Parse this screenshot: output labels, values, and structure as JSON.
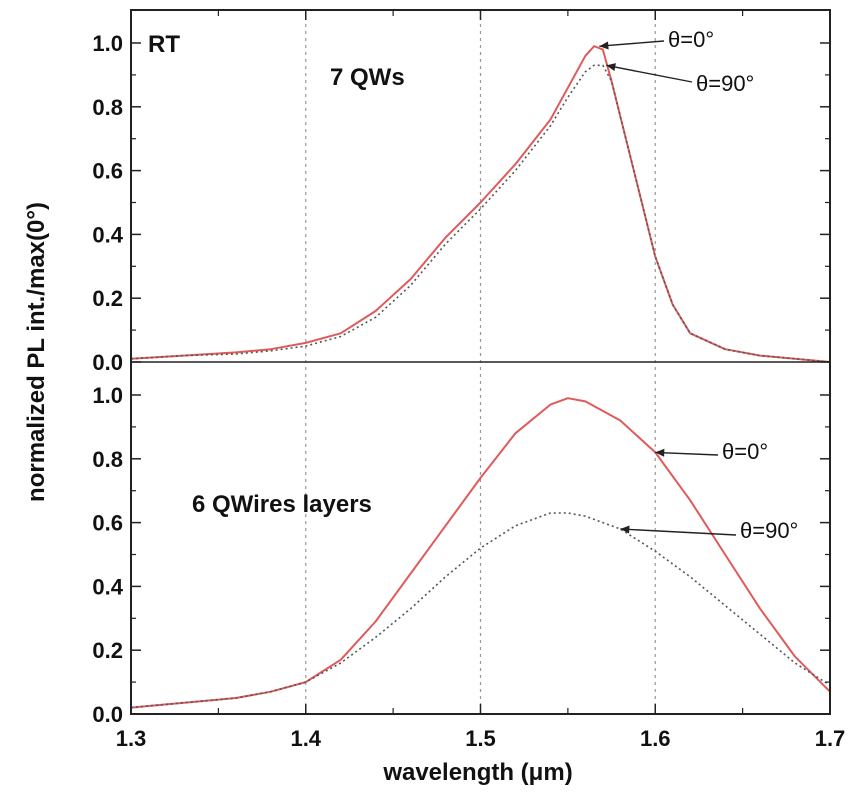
{
  "chart_data": [
    {
      "type": "line",
      "panel": "top",
      "xlim": [
        1.3,
        1.7
      ],
      "ylim": [
        0.0,
        1.1
      ],
      "ylabel": "normalized PL int./max(0°)",
      "y_ticks": [
        "0.0",
        "0.2",
        "0.4",
        "0.6",
        "0.8",
        "1.0"
      ],
      "annotations": {
        "rt": "RT",
        "sample": "7 QWs",
        "theta0": "θ=0°",
        "theta90": "θ=90°"
      },
      "series": [
        {
          "color": "#e05a5a",
          "dash": "solid",
          "x": [
            1.3,
            1.33,
            1.36,
            1.38,
            1.4,
            1.42,
            1.44,
            1.46,
            1.48,
            1.5,
            1.52,
            1.54,
            1.55,
            1.56,
            1.565,
            1.57,
            1.575,
            1.58,
            1.59,
            1.6,
            1.61,
            1.62,
            1.64,
            1.66,
            1.68,
            1.7
          ],
          "y": [
            0.01,
            0.02,
            0.03,
            0.04,
            0.06,
            0.09,
            0.16,
            0.26,
            0.39,
            0.5,
            0.62,
            0.76,
            0.86,
            0.96,
            0.99,
            0.98,
            0.88,
            0.77,
            0.55,
            0.33,
            0.18,
            0.09,
            0.04,
            0.02,
            0.01,
            0.0
          ]
        },
        {
          "color": "#555555",
          "dash": "dotted",
          "x": [
            1.3,
            1.33,
            1.36,
            1.38,
            1.4,
            1.42,
            1.44,
            1.46,
            1.48,
            1.5,
            1.52,
            1.54,
            1.55,
            1.56,
            1.565,
            1.57,
            1.575,
            1.58,
            1.59,
            1.6,
            1.61,
            1.62,
            1.64,
            1.66,
            1.68,
            1.7
          ],
          "y": [
            0.01,
            0.02,
            0.025,
            0.035,
            0.05,
            0.08,
            0.14,
            0.24,
            0.37,
            0.48,
            0.6,
            0.74,
            0.83,
            0.91,
            0.93,
            0.93,
            0.88,
            0.77,
            0.55,
            0.33,
            0.18,
            0.09,
            0.04,
            0.02,
            0.01,
            0.0
          ]
        }
      ]
    },
    {
      "type": "line",
      "panel": "bottom",
      "xlim": [
        1.3,
        1.7
      ],
      "ylim": [
        0.0,
        1.0
      ],
      "xlabel": "wavelength (μm)",
      "x_ticks": [
        "1.3",
        "1.4",
        "1.5",
        "1.6",
        "1.7"
      ],
      "y_ticks": [
        "0.0",
        "0.2",
        "0.4",
        "0.6",
        "0.8",
        "1.0"
      ],
      "annotations": {
        "sample": "6 QWires layers",
        "theta0": "θ=0°",
        "theta90": "θ=90°"
      },
      "series": [
        {
          "color": "#e05a5a",
          "dash": "solid",
          "x": [
            1.3,
            1.32,
            1.34,
            1.36,
            1.38,
            1.4,
            1.42,
            1.44,
            1.46,
            1.48,
            1.5,
            1.52,
            1.54,
            1.55,
            1.56,
            1.58,
            1.6,
            1.62,
            1.64,
            1.66,
            1.68,
            1.7
          ],
          "y": [
            0.02,
            0.03,
            0.04,
            0.05,
            0.07,
            0.1,
            0.17,
            0.29,
            0.44,
            0.59,
            0.74,
            0.88,
            0.97,
            0.99,
            0.98,
            0.92,
            0.82,
            0.67,
            0.5,
            0.33,
            0.18,
            0.07
          ]
        },
        {
          "color": "#555555",
          "dash": "dotted",
          "x": [
            1.3,
            1.32,
            1.34,
            1.36,
            1.38,
            1.4,
            1.42,
            1.44,
            1.46,
            1.48,
            1.5,
            1.52,
            1.54,
            1.55,
            1.56,
            1.58,
            1.6,
            1.62,
            1.64,
            1.66,
            1.68,
            1.7
          ],
          "y": [
            0.02,
            0.03,
            0.04,
            0.05,
            0.07,
            0.1,
            0.16,
            0.24,
            0.33,
            0.43,
            0.52,
            0.59,
            0.63,
            0.63,
            0.62,
            0.58,
            0.51,
            0.43,
            0.34,
            0.25,
            0.16,
            0.09
          ]
        }
      ]
    }
  ]
}
